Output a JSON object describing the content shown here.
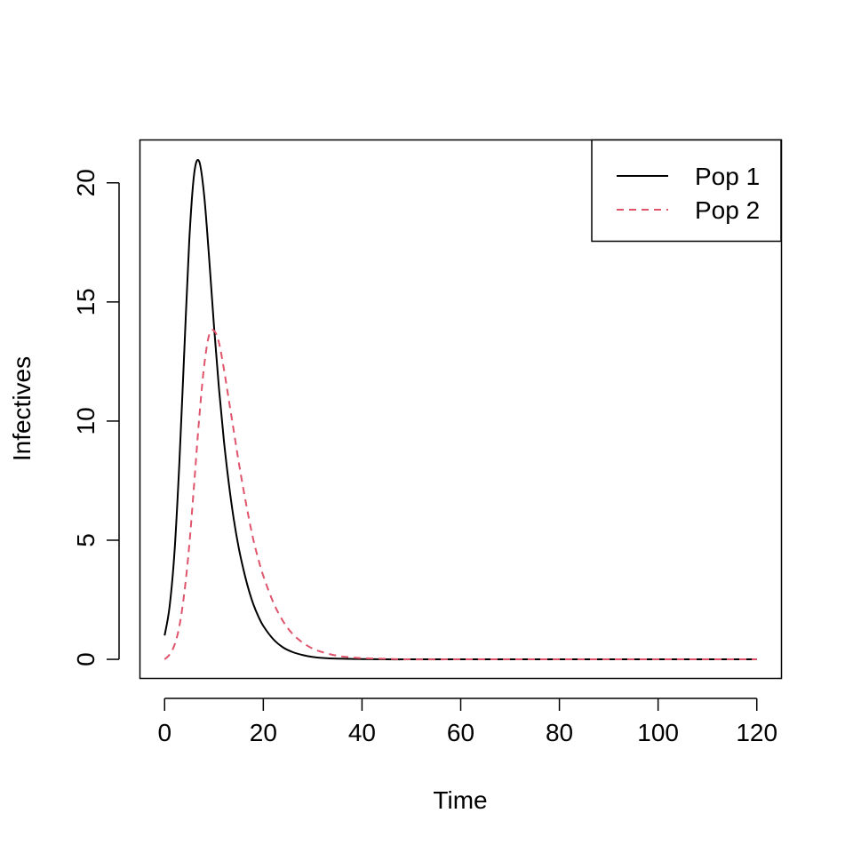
{
  "chart_data": {
    "type": "line",
    "title": "",
    "xlabel": "Time",
    "ylabel": "Infectives",
    "xlim": [
      -5,
      125
    ],
    "ylim": [
      -0.8,
      21.8
    ],
    "xticks": [
      0,
      20,
      40,
      60,
      80,
      100,
      120
    ],
    "yticks": [
      0,
      5,
      10,
      15,
      20
    ],
    "xtick_labels": [
      "0",
      "20",
      "40",
      "60",
      "80",
      "100",
      "120"
    ],
    "ytick_labels": [
      "0",
      "5",
      "10",
      "15",
      "20"
    ],
    "grid": false,
    "legend_position": "top-right",
    "series": [
      {
        "name": "Pop 1",
        "color": "#000000",
        "style": "solid",
        "x": [
          0,
          1,
          2,
          3,
          4,
          5,
          6,
          7,
          8,
          9,
          10,
          11,
          12,
          13,
          14,
          15,
          16,
          17,
          18,
          19,
          20,
          22,
          24,
          26,
          28,
          30,
          32,
          35,
          40,
          45,
          50,
          60,
          80,
          100,
          120
        ],
        "y": [
          1.0,
          2.2,
          4.5,
          8.3,
          13.0,
          17.6,
          20.4,
          20.9,
          19.5,
          16.9,
          14.0,
          11.4,
          9.2,
          7.4,
          5.9,
          4.7,
          3.75,
          2.95,
          2.3,
          1.8,
          1.4,
          0.85,
          0.5,
          0.3,
          0.18,
          0.1,
          0.06,
          0.03,
          0.01,
          0.0,
          0.0,
          0.0,
          0.0,
          0.0,
          0.0
        ]
      },
      {
        "name": "Pop 2",
        "color": "#df536b",
        "style": "dashed",
        "x": [
          0,
          1,
          2,
          3,
          4,
          5,
          6,
          7,
          8,
          9,
          10,
          11,
          12,
          13,
          14,
          15,
          16,
          17,
          18,
          19,
          20,
          22,
          24,
          26,
          28,
          30,
          32,
          35,
          38,
          40,
          45,
          50,
          60,
          80,
          100,
          120
        ],
        "y": [
          0.0,
          0.2,
          0.6,
          1.4,
          2.8,
          4.8,
          7.4,
          10.1,
          12.3,
          13.6,
          13.8,
          13.3,
          12.2,
          10.9,
          9.6,
          8.3,
          7.1,
          6.0,
          5.0,
          4.2,
          3.5,
          2.4,
          1.6,
          1.05,
          0.7,
          0.45,
          0.3,
          0.15,
          0.08,
          0.05,
          0.02,
          0.0,
          0.0,
          0.0,
          0.0,
          0.0
        ]
      }
    ]
  }
}
